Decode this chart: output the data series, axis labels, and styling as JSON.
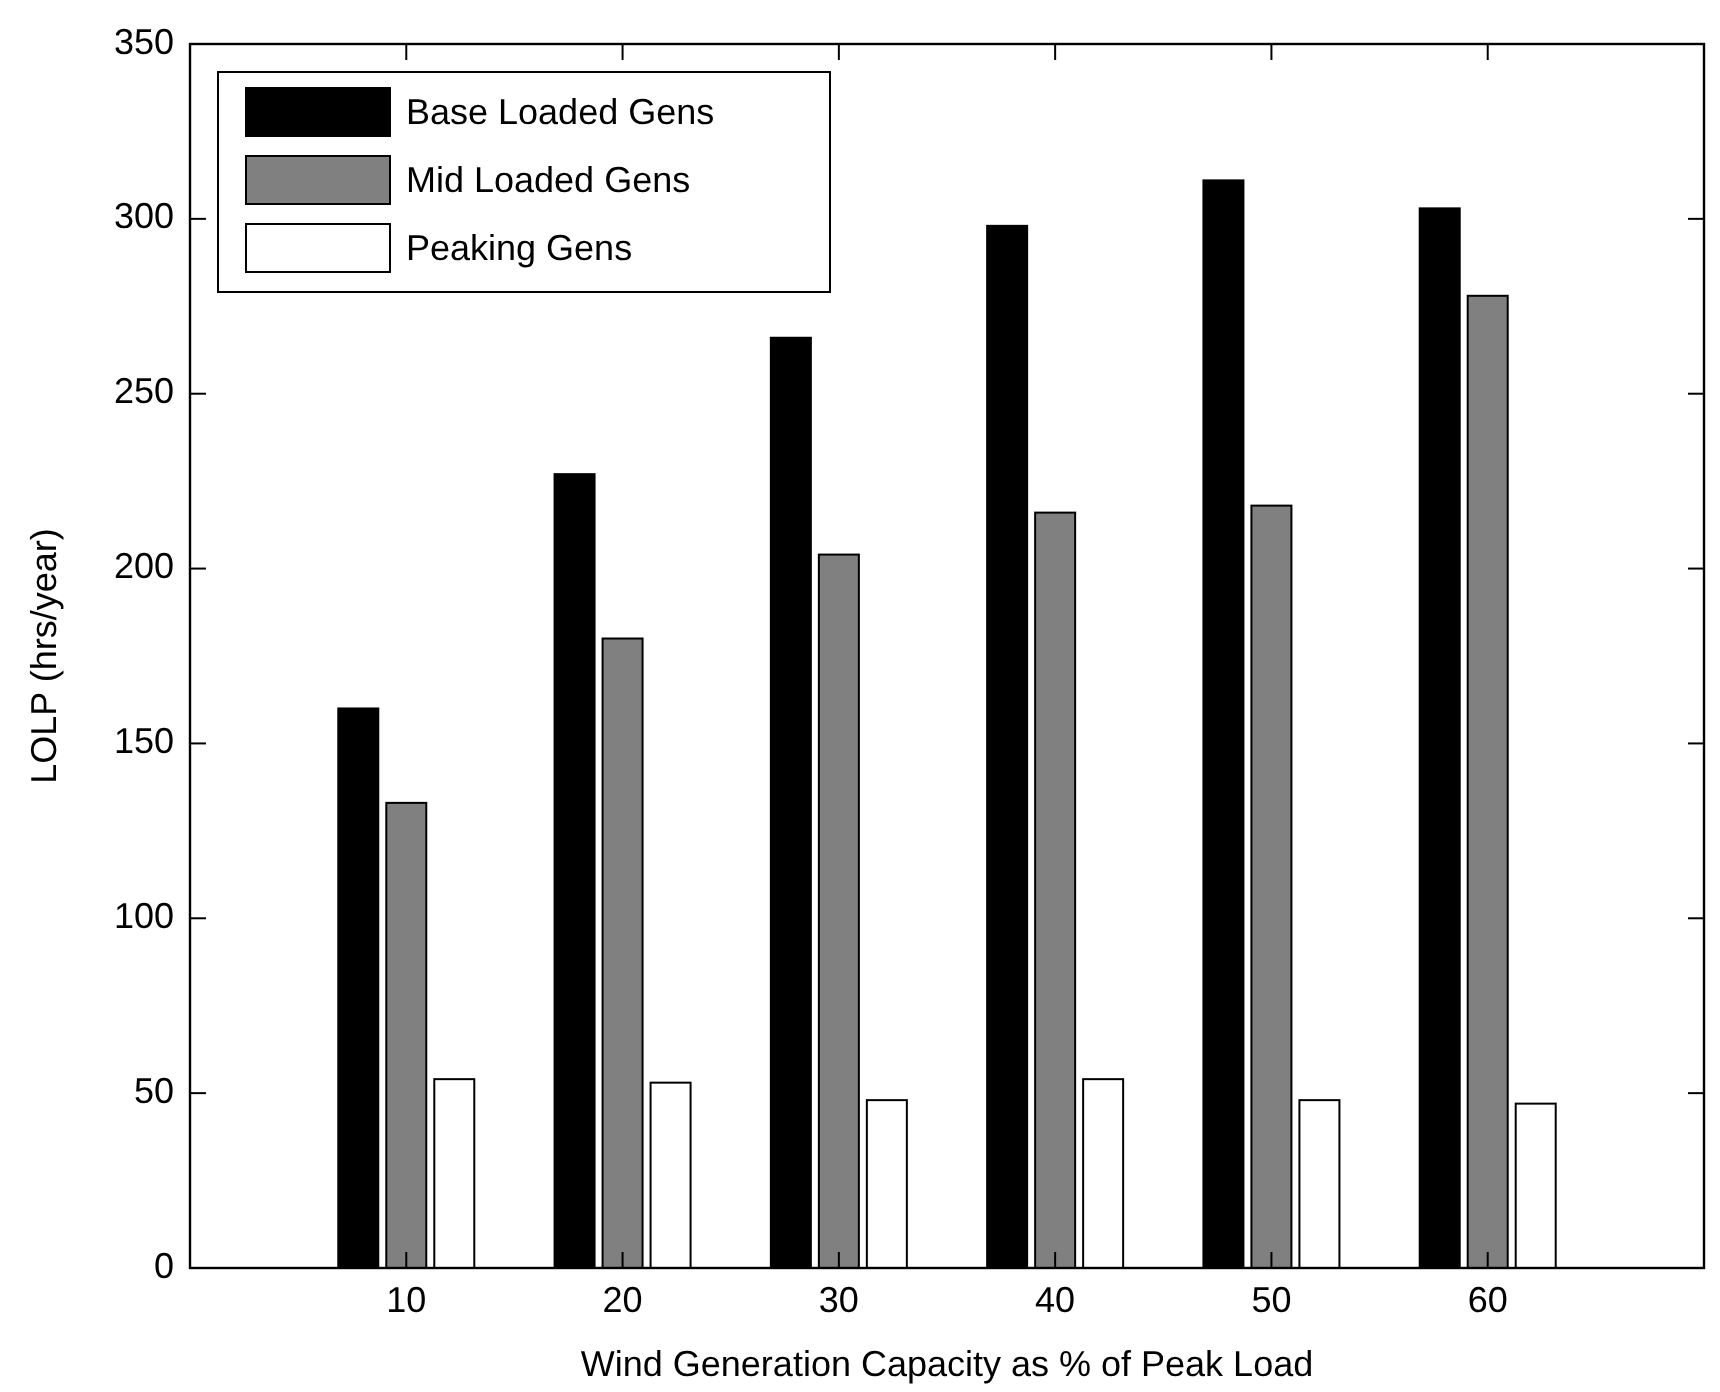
{
  "chart_data": {
    "type": "bar",
    "xlabel": "Wind Generation Capacity as % of Peak Load",
    "ylabel": "LOLP (hrs/year)",
    "categories": [
      "10",
      "20",
      "30",
      "40",
      "50",
      "60"
    ],
    "series": [
      {
        "name": "Base Loaded Gens",
        "color": "#000000",
        "values": [
          160,
          227,
          266,
          298,
          311,
          303
        ]
      },
      {
        "name": "Mid Loaded Gens",
        "color": "#808080",
        "values": [
          133,
          180,
          204,
          216,
          218,
          278
        ]
      },
      {
        "name": "Peaking Gens",
        "color": "#ffffff",
        "values": [
          54,
          53,
          48,
          54,
          48,
          47
        ]
      }
    ],
    "ylim": [
      0,
      350
    ],
    "yticks": [
      0,
      50,
      100,
      150,
      200,
      250,
      300,
      350
    ],
    "grid": false,
    "legend": "top left"
  }
}
